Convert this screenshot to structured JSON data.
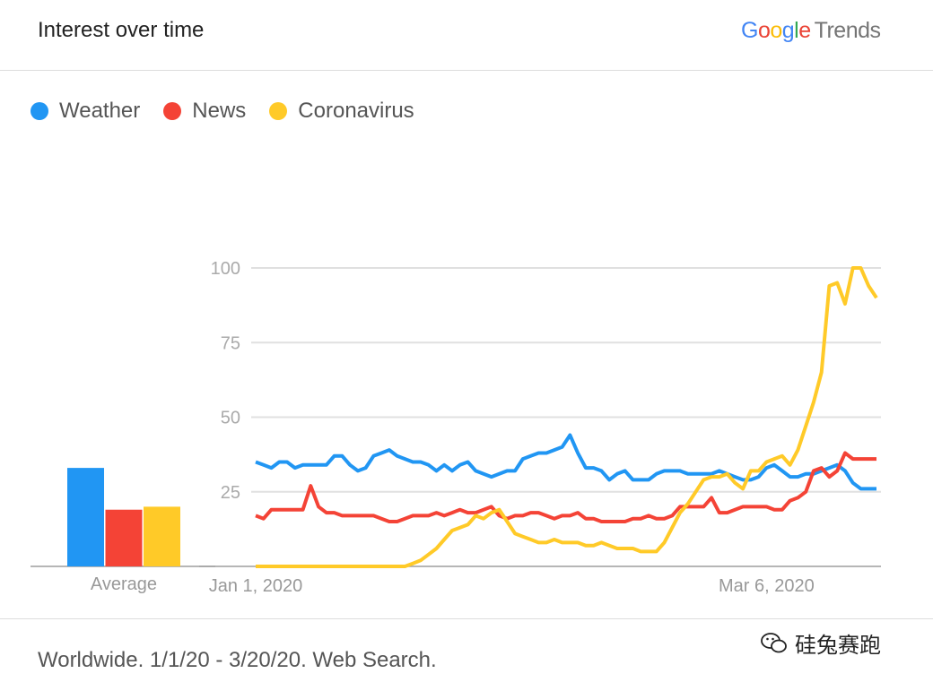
{
  "header": {
    "title": "Interest over time",
    "logo": "Google Trends",
    "logo_letters": [
      "G",
      "o",
      "o",
      "g",
      "l",
      "e"
    ],
    "logo_colors": [
      "#4285f4",
      "#ea4335",
      "#fbbc05",
      "#4285f4",
      "#34a853",
      "#ea4335"
    ],
    "logo_suffix": "Trends"
  },
  "footer": {
    "text": "Worldwide. 1/1/20 - 3/20/20. Web Search."
  },
  "watermark": {
    "text": "硅兔赛跑",
    "icon": "wechat-icon"
  },
  "chart_data": {
    "type": "line",
    "title": "Interest over time",
    "ylim": [
      0,
      100
    ],
    "yticks": [
      "100",
      "75",
      "50",
      "25"
    ],
    "ytick_values": [
      100,
      75,
      50,
      25
    ],
    "xtick_labels": [
      "Jan 1, 2020",
      "Mar 6, 2020"
    ],
    "xtick_index": [
      0,
      65
    ],
    "x_start": "2020-01-01",
    "x_end": "2020-03-20",
    "grid": true,
    "legend_position": "top-left",
    "series": [
      {
        "name": "Weather",
        "color": "#2196f3",
        "average": 33,
        "values": [
          35,
          34,
          33,
          35,
          35,
          33,
          34,
          34,
          34,
          34,
          37,
          37,
          34,
          32,
          33,
          37,
          38,
          39,
          37,
          36,
          35,
          35,
          34,
          32,
          34,
          32,
          34,
          35,
          32,
          31,
          30,
          31,
          32,
          32,
          36,
          37,
          38,
          38,
          39,
          40,
          44,
          38,
          33,
          33,
          32,
          29,
          31,
          32,
          29,
          29,
          29,
          31,
          32,
          32,
          32,
          31,
          31,
          31,
          31,
          32,
          31,
          30,
          29,
          29,
          30,
          33,
          34,
          32,
          30,
          30,
          31,
          31,
          32,
          33,
          34,
          32,
          28,
          26,
          26,
          26
        ]
      },
      {
        "name": "News",
        "color": "#f44336",
        "average": 19,
        "values": [
          17,
          16,
          19,
          19,
          19,
          19,
          19,
          27,
          20,
          18,
          18,
          17,
          17,
          17,
          17,
          17,
          16,
          15,
          15,
          16,
          17,
          17,
          17,
          18,
          17,
          18,
          19,
          18,
          18,
          19,
          20,
          17,
          16,
          17,
          17,
          18,
          18,
          17,
          16,
          17,
          17,
          18,
          16,
          16,
          15,
          15,
          15,
          15,
          16,
          16,
          17,
          16,
          16,
          17,
          20,
          20,
          20,
          20,
          23,
          18,
          18,
          19,
          20,
          20,
          20,
          20,
          19,
          19,
          22,
          23,
          25,
          32,
          33,
          30,
          32,
          38,
          36,
          36,
          36,
          36
        ]
      },
      {
        "name": "Coronavirus",
        "color": "#ffca28",
        "average": 20,
        "values": [
          0,
          0,
          0,
          0,
          0,
          0,
          0,
          0,
          0,
          0,
          0,
          0,
          0,
          0,
          0,
          0,
          0,
          0,
          0,
          0,
          1,
          2,
          4,
          6,
          9,
          12,
          13,
          14,
          17,
          16,
          18,
          19,
          15,
          11,
          10,
          9,
          8,
          8,
          9,
          8,
          8,
          8,
          7,
          7,
          8,
          7,
          6,
          6,
          6,
          5,
          5,
          5,
          8,
          13,
          18,
          21,
          25,
          29,
          30,
          30,
          31,
          28,
          26,
          32,
          32,
          35,
          36,
          37,
          34,
          39,
          47,
          55,
          65,
          94,
          95,
          88,
          100,
          100,
          94,
          90
        ]
      }
    ],
    "average_label": "Average"
  }
}
